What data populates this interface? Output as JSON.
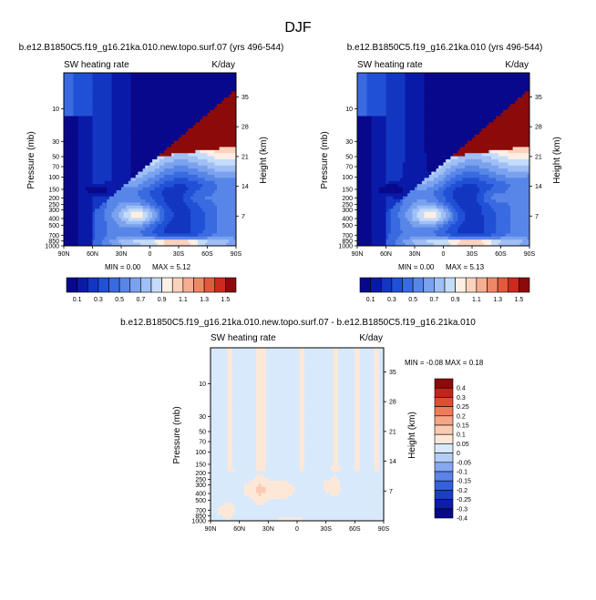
{
  "figure_title": "DJF",
  "top_left": {
    "case_title": "b.e12.B1850C5.f19_g16.21ka.010.new.topo.surf.07 (yrs 496-544)",
    "variable": "SW heating rate",
    "units": "K/day",
    "ylabel_left": "Pressure (mb)",
    "ylabel_right": "Height (km)",
    "min_text": "MIN =   0.00",
    "max_text": "MAX =   5.12"
  },
  "top_right": {
    "case_title": "b.e12.B1850C5.f19_g16.21ka.010 (yrs 496-544)",
    "variable": "SW heating rate",
    "units": "K/day",
    "ylabel_left": "Pressure (mb)",
    "ylabel_right": "Height (km)",
    "min_text": "MIN =   0.00",
    "max_text": "MAX =   5.13"
  },
  "bottom": {
    "case_title": "b.e12.B1850C5.f19_g16.21ka.010.new.topo.surf.07 - b.e12.B1850C5.f19_g16.21ka.010",
    "variable": "SW heating rate",
    "units": "K/day",
    "ylabel_left": "Pressure (mb)",
    "ylabel_right": "Height (km)",
    "minmax_text": "MIN =  -0.08   MAX =   0.18"
  },
  "chart_data": [
    {
      "type": "heatmap",
      "title": "b.e12.B1850C5.f19_g16.21ka.010.new.topo.surf.07 (yrs 496-544)",
      "subtitle": "SW heating rate",
      "units": "K/day",
      "xlabel": "",
      "ylabel": "Pressure (mb)",
      "y2label": "Height (km)",
      "x_ticks": [
        "90N",
        "60N",
        "30N",
        "0",
        "30S",
        "60S",
        "90S"
      ],
      "x_range": [
        90,
        -90
      ],
      "y_scale": "log",
      "y_range": [
        1000,
        3
      ],
      "y_ticks": [
        "10",
        "30",
        "50",
        "70",
        "100",
        "150",
        "200",
        "250",
        "300",
        "400",
        "500",
        "700",
        "850",
        "1000"
      ],
      "y2_ticks": [
        "35",
        "28",
        "21",
        "14",
        "7"
      ],
      "min": 0.0,
      "max": 5.12,
      "levels": [
        0.1,
        0.2,
        0.3,
        0.4,
        0.5,
        0.6,
        0.7,
        0.8,
        0.9,
        1.0,
        1.1,
        1.2,
        1.3,
        1.4,
        1.5
      ],
      "colorbar_labels": [
        "0.1",
        "0.3",
        "0.5",
        "0.7",
        "0.9",
        "1.1",
        "1.3",
        "1.5"
      ]
    },
    {
      "type": "heatmap",
      "title": "b.e12.B1850C5.f19_g16.21ka.010 (yrs 496-544)",
      "subtitle": "SW heating rate",
      "units": "K/day",
      "xlabel": "",
      "ylabel": "Pressure (mb)",
      "y2label": "Height (km)",
      "x_ticks": [
        "90N",
        "60N",
        "30N",
        "0",
        "30S",
        "60S",
        "90S"
      ],
      "x_range": [
        90,
        -90
      ],
      "y_scale": "log",
      "y_range": [
        1000,
        3
      ],
      "y_ticks": [
        "10",
        "30",
        "50",
        "70",
        "100",
        "150",
        "200",
        "250",
        "300",
        "400",
        "500",
        "700",
        "850",
        "1000"
      ],
      "y2_ticks": [
        "35",
        "28",
        "21",
        "14",
        "7"
      ],
      "min": 0.0,
      "max": 5.13,
      "levels": [
        0.1,
        0.2,
        0.3,
        0.4,
        0.5,
        0.6,
        0.7,
        0.8,
        0.9,
        1.0,
        1.1,
        1.2,
        1.3,
        1.4,
        1.5
      ],
      "colorbar_labels": [
        "0.1",
        "0.3",
        "0.5",
        "0.7",
        "0.9",
        "1.1",
        "1.3",
        "1.5"
      ]
    },
    {
      "type": "heatmap",
      "title": "b.e12.B1850C5.f19_g16.21ka.010.new.topo.surf.07 - b.e12.B1850C5.f19_g16.21ka.010",
      "subtitle": "SW heating rate",
      "units": "K/day",
      "xlabel": "",
      "ylabel": "Pressure (mb)",
      "y2label": "Height (km)",
      "x_ticks": [
        "90N",
        "60N",
        "30N",
        "0",
        "30S",
        "60S",
        "90S"
      ],
      "x_range": [
        90,
        -90
      ],
      "y_scale": "log",
      "y_range": [
        1000,
        3
      ],
      "y_ticks": [
        "10",
        "30",
        "50",
        "70",
        "100",
        "150",
        "200",
        "250",
        "300",
        "400",
        "500",
        "700",
        "850",
        "1000"
      ],
      "y2_ticks": [
        "35",
        "28",
        "21",
        "14",
        "7"
      ],
      "min": -0.08,
      "max": 0.18,
      "levels": [
        -0.4,
        -0.3,
        -0.25,
        -0.2,
        -0.15,
        -0.1,
        -0.05,
        0,
        0.05,
        0.1,
        0.15,
        0.2,
        0.25,
        0.3,
        0.4
      ],
      "colorbar_labels": [
        "0.4",
        "0.3",
        "0.25",
        "0.2",
        "0.15",
        "0.1",
        "0.05",
        "0",
        "-0.05",
        "-0.1",
        "-0.15",
        "-0.2",
        "-0.25",
        "-0.3",
        "-0.4"
      ]
    }
  ],
  "colors": {
    "seq_scale": [
      "#08088c",
      "#0a1aa8",
      "#1336c2",
      "#2050d6",
      "#3a6ae0",
      "#5886e8",
      "#7aa2ef",
      "#9fbff5",
      "#c4dbfa",
      "#fcefe4",
      "#fbd2bd",
      "#f6ae92",
      "#ee8766",
      "#e25a3c",
      "#cc2a1e",
      "#8c0a0a"
    ],
    "diff_scale": [
      "#08088c",
      "#0a1ea6",
      "#1a3ec4",
      "#3560dc",
      "#5a84e8",
      "#86a8f0",
      "#b3cdf7",
      "#d8e9fc",
      "#fde8d8",
      "#fbcab0",
      "#f6a585",
      "#ee7c5a",
      "#dd4f33",
      "#c2241a",
      "#8c0a0a"
    ]
  }
}
